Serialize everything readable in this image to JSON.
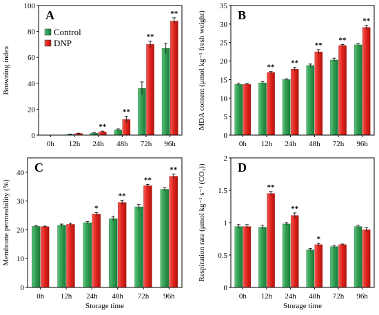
{
  "chart_data": [
    {
      "panel": "A",
      "type": "bar",
      "categories": [
        "0h",
        "12h",
        "24h",
        "48h",
        "72h",
        "96h"
      ],
      "series": [
        {
          "name": "Control",
          "values": [
            0,
            0.5,
            1.5,
            4,
            36,
            67
          ],
          "errors": [
            0,
            0.3,
            0.5,
            0.8,
            5,
            4
          ]
        },
        {
          "name": "DNP",
          "values": [
            0,
            1.2,
            2.5,
            12,
            70,
            88
          ],
          "errors": [
            0,
            0.3,
            0.6,
            2.5,
            2.5,
            2.5
          ]
        }
      ],
      "significance": [
        "",
        "",
        "**",
        "**",
        "**",
        "**"
      ],
      "xlabel": "",
      "ylabel": "Browning index",
      "ylim": [
        0,
        100
      ],
      "yticks": [
        "0",
        "20",
        "40",
        "60",
        "80",
        "100"
      ],
      "legend": "top-left"
    },
    {
      "panel": "B",
      "type": "bar",
      "categories": [
        "0h",
        "12h",
        "24h",
        "48h",
        "72h",
        "96h"
      ],
      "series": [
        {
          "name": "Control",
          "values": [
            13.7,
            14.1,
            15.0,
            18.8,
            20.3,
            24.4
          ],
          "errors": [
            0.3,
            0.3,
            0.2,
            0.4,
            0.5,
            0.3
          ]
        },
        {
          "name": "DNP",
          "values": [
            13.7,
            16.9,
            17.8,
            22.5,
            24.2,
            29.1
          ],
          "errors": [
            0.2,
            0.3,
            0.5,
            0.6,
            0.3,
            0.6
          ]
        }
      ],
      "significance": [
        "",
        "**",
        "**",
        "**",
        "**",
        "**"
      ],
      "xlabel": "",
      "ylabel": "MDA content (μmol kg⁻¹ fresh weight)",
      "ylim": [
        0,
        35
      ],
      "yticks": [
        "0",
        "5",
        "10",
        "15",
        "20",
        "25",
        "30",
        "35"
      ]
    },
    {
      "panel": "C",
      "type": "bar",
      "categories": [
        "0h",
        "12h",
        "24h",
        "48h",
        "72h",
        "96h"
      ],
      "series": [
        {
          "name": "Control",
          "values": [
            21.2,
            21.6,
            22.5,
            23.9,
            28.0,
            34.1
          ],
          "errors": [
            0.3,
            0.4,
            0.4,
            0.8,
            0.8,
            0.5
          ]
        },
        {
          "name": "DNP",
          "values": [
            21.1,
            21.9,
            25.5,
            29.5,
            35.3,
            38.6
          ],
          "errors": [
            0.2,
            0.4,
            0.5,
            0.8,
            0.5,
            0.8
          ]
        }
      ],
      "significance": [
        "",
        "",
        "*",
        "**",
        "**",
        "**"
      ],
      "xlabel": "Storage time",
      "ylabel": "Membrane permeability (%)",
      "ylim": [
        0,
        45
      ],
      "yticks": [
        "0",
        "10",
        "20",
        "30",
        "40"
      ]
    },
    {
      "panel": "D",
      "type": "bar",
      "categories": [
        "0h",
        "12h",
        "24h",
        "48h",
        "72h",
        "96h"
      ],
      "series": [
        {
          "name": "Control",
          "values": [
            0.94,
            0.93,
            0.98,
            0.58,
            0.63,
            0.94
          ],
          "errors": [
            0.03,
            0.03,
            0.02,
            0.02,
            0.02,
            0.02
          ]
        },
        {
          "name": "DNP",
          "values": [
            0.94,
            1.45,
            1.11,
            0.66,
            0.66,
            0.89
          ],
          "errors": [
            0.03,
            0.03,
            0.04,
            0.02,
            0.01,
            0.03
          ]
        }
      ],
      "significance": [
        "",
        "**",
        "**",
        "*",
        "",
        ""
      ],
      "xlabel": "Storage time",
      "ylabel": "Respiration rate (μmol kg⁻¹ s⁻¹ (CO₂))",
      "ylim": [
        0,
        2
      ],
      "yticks": [
        "0",
        "0.5",
        "1",
        "1.5",
        "2"
      ]
    }
  ],
  "colors": {
    "control": "#2e9b4f",
    "dnp": "#e0231c"
  }
}
